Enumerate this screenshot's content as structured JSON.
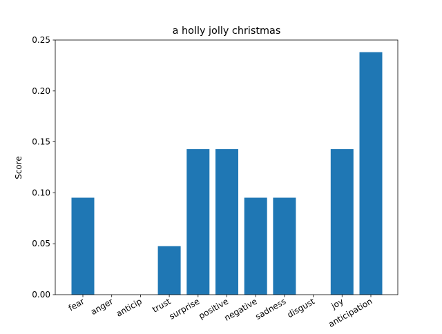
{
  "chart_data": {
    "type": "bar",
    "title": "a holly jolly christmas",
    "xlabel": "",
    "ylabel": "Score",
    "categories": [
      "fear",
      "anger",
      "anticip",
      "trust",
      "surprise",
      "positive",
      "negative",
      "sadness",
      "disgust",
      "joy",
      "anticipation"
    ],
    "values": [
      0.0952,
      0.0,
      0.0,
      0.0476,
      0.1429,
      0.1429,
      0.0952,
      0.0952,
      0.0,
      0.1429,
      0.2381
    ],
    "ylim": [
      0,
      0.25
    ],
    "yticks": [
      "0.00",
      "0.05",
      "0.10",
      "0.15",
      "0.20",
      "0.25"
    ],
    "bar_color": "#1f77b4",
    "grid": false,
    "legend": "none"
  }
}
